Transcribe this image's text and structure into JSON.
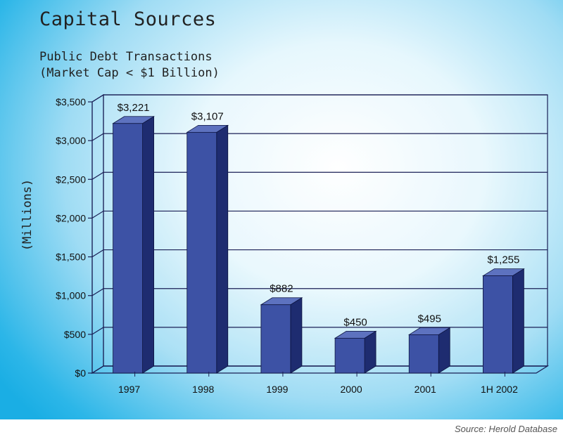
{
  "title": "Capital Sources",
  "subtitle_line1": "Public Debt Transactions",
  "subtitle_line2": "(Market Cap < $1 Billion)",
  "source": "Source: Herold Database",
  "colors": {
    "bar_front": "#3d52a5",
    "bar_side": "#1e2c70",
    "bar_top": "#5d72bf",
    "gridline": "#1a1f55"
  },
  "chart_data": {
    "type": "bar",
    "ylabel": "(Millions)",
    "categories": [
      "1997",
      "1998",
      "1999",
      "2000",
      "2001",
      "1H 2002"
    ],
    "values": [
      3221,
      3107,
      882,
      450,
      495,
      1255
    ],
    "data_labels": [
      "$3,221",
      "$3,107",
      "$882",
      "$450",
      "$495",
      "$1,255"
    ],
    "ylim": [
      0,
      3500
    ],
    "yticks": [
      0,
      500,
      1000,
      1500,
      2000,
      2500,
      3000,
      3500
    ],
    "ytick_labels": [
      "$0",
      "$500",
      "$1,000",
      "$1,500",
      "$2,000",
      "$2,500",
      "$3,000",
      "$3,500"
    ],
    "grid": true,
    "legend": false,
    "style": "3d"
  }
}
